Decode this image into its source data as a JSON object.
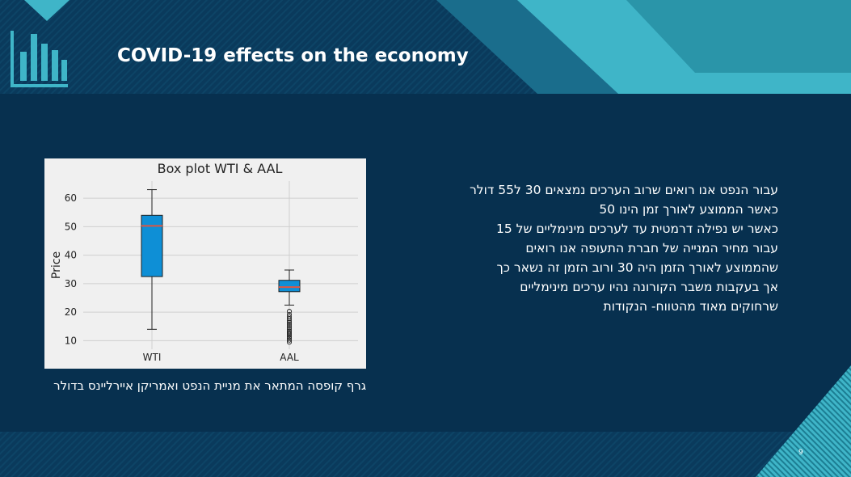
{
  "slide": {
    "title": "COVID-19 effects on the economy",
    "caption": "גרף קופסה המתאר את מניית הנפט ואמריקן איירליינס בדולר",
    "paragraph": [
      "עבור הנפט אנו רואים שרוב הערכים נמצאים 30 ל55 דולר",
      "כאשר הממוצע לאורך זמן הינו 50",
      "כאשר יש נפילה דרמטית עד לערכים מינימליים של 15",
      "עבור מחיר המנייה של חברת התעופה אנו רואים",
      "שהממוצע לאורך הזמן היה 30 ורוב הזמן זה נשאר כך",
      "אך בעקבות משבר הקורונה נהיו ערכים מינימליים",
      "שרחוקים מאוד מהטווח- הנקודות"
    ],
    "page_number": "9",
    "colors": {
      "background": "#07304f",
      "accent": "#3fb5c8",
      "box_fill": "#0e8fd6",
      "median": "#e05540"
    }
  },
  "chart_data": {
    "type": "box",
    "title": "Box plot WTI & AAL",
    "xlabel": "",
    "ylabel": "Price",
    "categories": [
      "WTI",
      "AAL"
    ],
    "ylim": [
      7,
      66
    ],
    "yticks": [
      10,
      20,
      30,
      40,
      50,
      60
    ],
    "grid": true,
    "boxes": [
      {
        "name": "WTI",
        "whisker_low": 14,
        "q1": 32.5,
        "median": 50.3,
        "q3": 54,
        "whisker_high": 63,
        "outliers": []
      },
      {
        "name": "AAL",
        "whisker_low": 22.5,
        "q1": 27.2,
        "median": 28.8,
        "q3": 31.2,
        "whisker_high": 34.8,
        "outliers": [
          9.5,
          10.2,
          10.8,
          11.3,
          11.9,
          12.4,
          12.9,
          13.4,
          14,
          14.6,
          15.2,
          15.8,
          16.4,
          17,
          17.7,
          18.4,
          19.2,
          20.3
        ]
      }
    ]
  }
}
